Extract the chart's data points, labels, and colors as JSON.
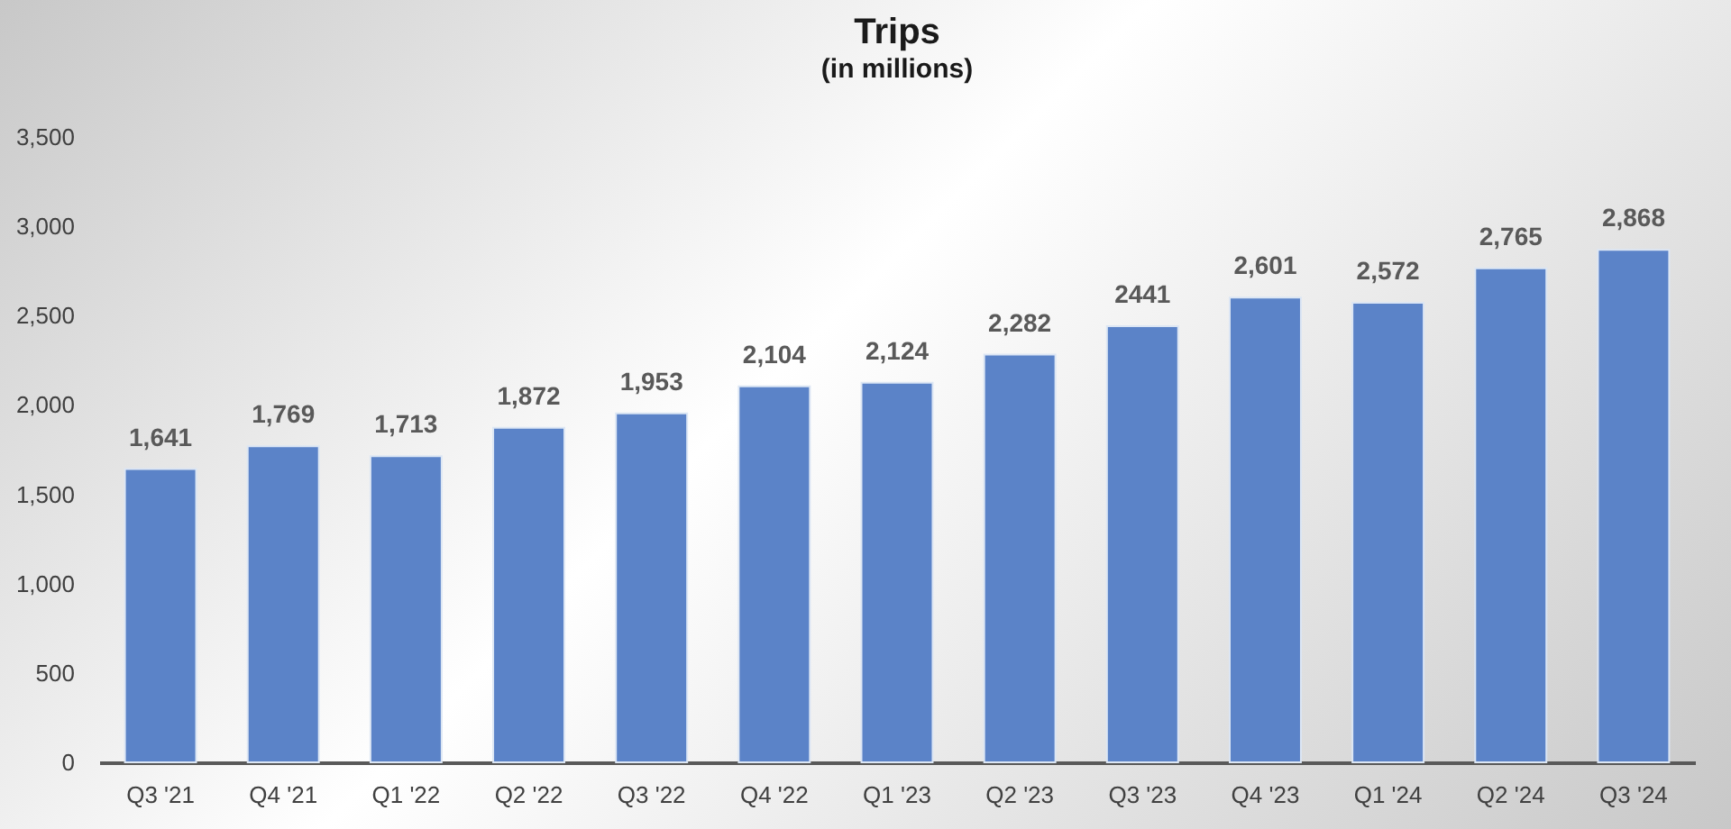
{
  "chart_data": {
    "type": "bar",
    "title": "Trips",
    "subtitle": "(in millions)",
    "categories": [
      "Q3 '21",
      "Q4 '21",
      "Q1 '22",
      "Q2 '22",
      "Q3 '22",
      "Q4 '22",
      "Q1 '23",
      "Q2 '23",
      "Q3 '23",
      "Q4 '23",
      "Q1 '24",
      "Q2 '24",
      "Q3 '24"
    ],
    "values": [
      1641,
      1769,
      1713,
      1872,
      1953,
      2104,
      2124,
      2282,
      2441,
      2601,
      2572,
      2765,
      2868
    ],
    "value_labels": [
      "1,641",
      "1,769",
      "1,713",
      "1,872",
      "1,953",
      "2,104",
      "2,124",
      "2,282",
      "2441",
      "2,601",
      "2,572",
      "2,765",
      "2,868"
    ],
    "color": "#5b83c8",
    "ylim": [
      0,
      3500
    ],
    "yticks": [
      {
        "value": 0,
        "label": "0"
      },
      {
        "value": 500,
        "label": "500"
      },
      {
        "value": 1000,
        "label": "1,000"
      },
      {
        "value": 1500,
        "label": "1,500"
      },
      {
        "value": 2000,
        "label": "2,000"
      },
      {
        "value": 2500,
        "label": "2,500"
      },
      {
        "value": 3000,
        "label": "3,000"
      },
      {
        "value": 3500,
        "label": "3,500"
      }
    ],
    "grid": false
  }
}
